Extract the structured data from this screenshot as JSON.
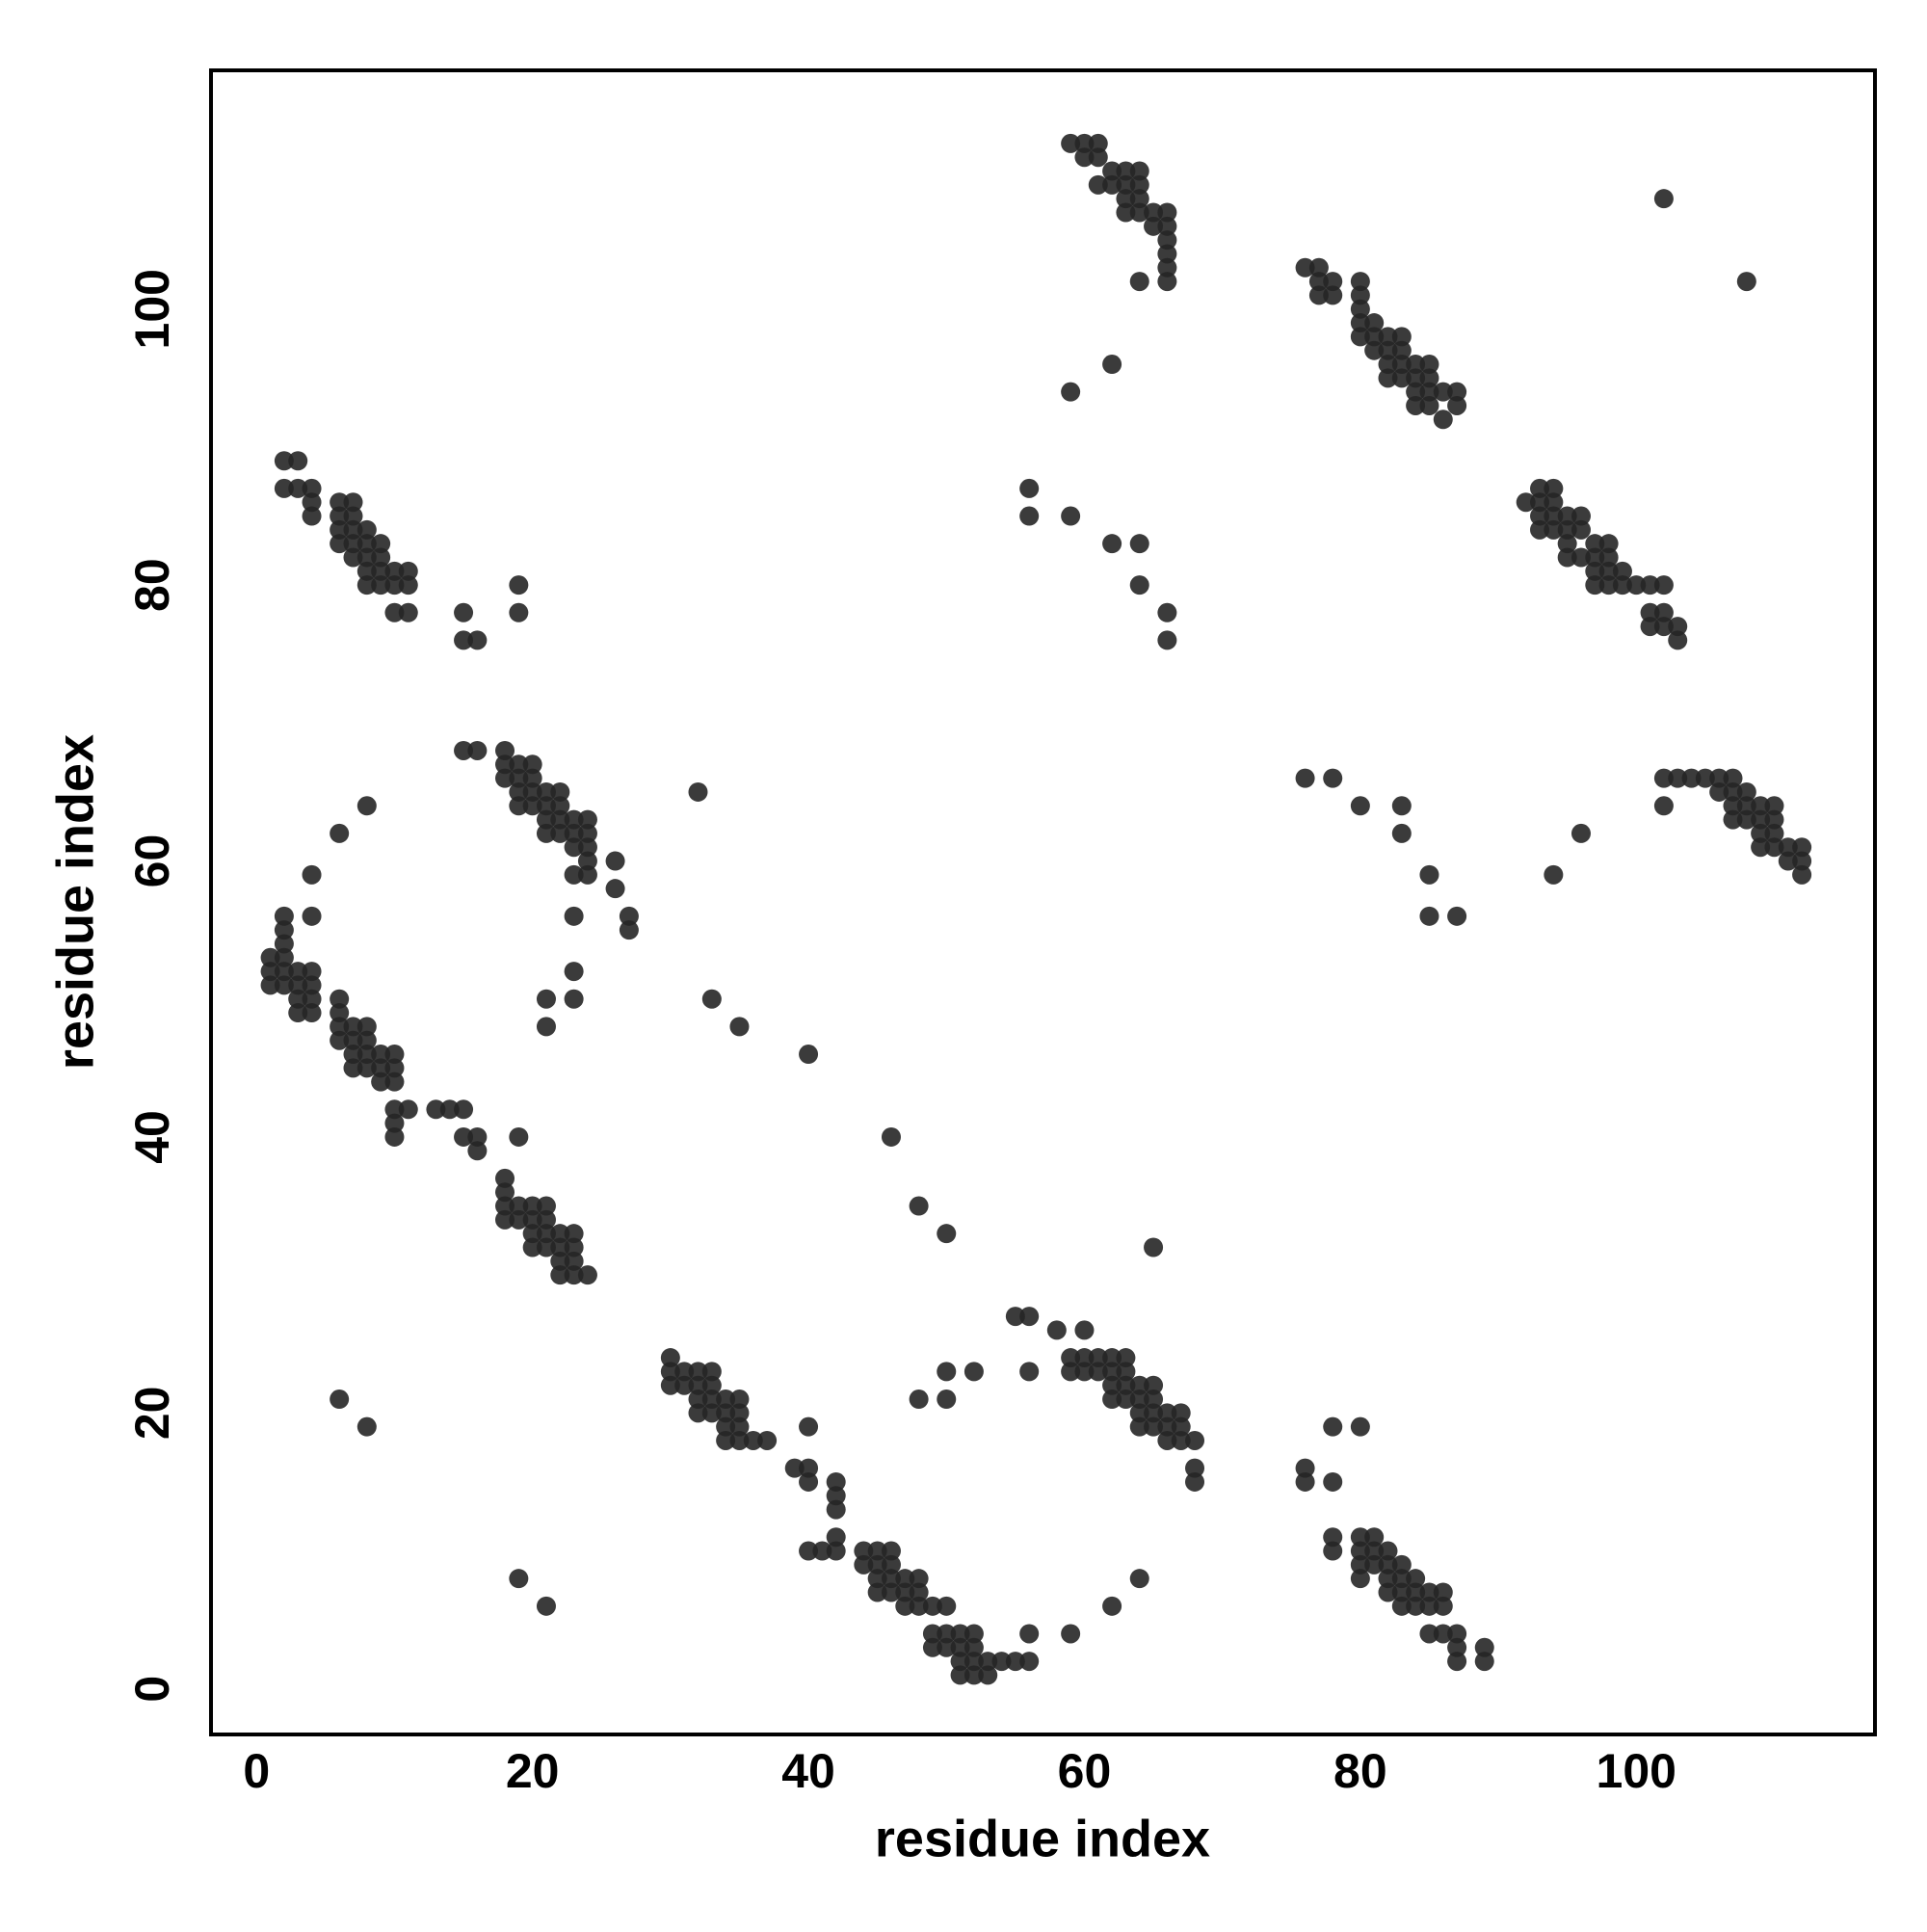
{
  "chart_data": {
    "type": "scatter",
    "xlabel": "residue index",
    "ylabel": "residue index",
    "xlim": [
      -3.3,
      117.3
    ],
    "ylim": [
      -3.3,
      117.3
    ],
    "xticks": [
      0,
      20,
      40,
      60,
      80,
      100
    ],
    "yticks": [
      0,
      20,
      40,
      60,
      80,
      100
    ],
    "grid": false,
    "color": "#262626",
    "x": [
      2,
      3,
      2,
      3,
      4,
      4,
      4,
      6,
      7,
      6,
      7,
      6,
      7,
      8,
      6,
      7,
      8,
      9,
      7,
      8,
      9,
      8,
      9,
      10,
      11,
      8,
      9,
      10,
      11,
      10,
      11,
      15,
      15,
      16,
      19,
      19,
      2,
      4,
      2,
      2,
      4,
      1,
      2,
      1,
      2,
      3,
      4,
      1,
      2,
      3,
      4,
      3,
      4,
      3,
      4,
      6,
      6,
      6,
      7,
      8,
      6,
      7,
      8,
      7,
      8,
      9,
      10,
      7,
      8,
      9,
      10,
      9,
      10,
      10,
      11,
      10,
      10,
      13,
      14,
      15,
      15,
      16,
      16,
      19,
      6,
      8,
      15,
      16,
      18,
      18,
      19,
      20,
      18,
      19,
      20,
      19,
      20,
      21,
      22,
      19,
      20,
      21,
      22,
      21,
      22,
      23,
      24,
      21,
      22,
      23,
      24,
      23,
      24,
      24,
      23,
      24,
      26,
      26,
      27,
      27,
      23,
      23,
      23,
      21,
      21,
      32,
      18,
      18,
      18,
      19,
      20,
      21,
      18,
      19,
      20,
      21,
      20,
      21,
      22,
      23,
      20,
      21,
      22,
      23,
      22,
      23,
      22,
      23,
      24,
      33,
      35,
      40,
      46,
      48,
      50,
      65,
      30,
      30,
      31,
      32,
      33,
      30,
      31,
      32,
      33,
      32,
      33,
      34,
      35,
      32,
      33,
      34,
      35,
      34,
      35,
      34,
      35,
      36,
      37,
      6,
      8,
      19,
      21,
      40,
      39,
      40,
      40,
      42,
      42,
      42,
      42,
      40,
      41,
      42,
      44,
      45,
      46,
      44,
      45,
      46,
      45,
      46,
      47,
      48,
      45,
      46,
      47,
      48,
      47,
      48,
      49,
      50,
      49,
      50,
      51,
      52,
      49,
      50,
      51,
      52,
      51,
      52,
      53,
      54,
      55,
      56,
      51,
      52,
      53,
      56,
      59,
      62,
      64,
      48,
      50,
      50,
      52,
      56,
      55,
      56,
      58,
      60,
      59,
      60,
      61,
      62,
      63,
      59,
      60,
      61,
      62,
      63,
      62,
      63,
      64,
      65,
      62,
      63,
      64,
      65,
      64,
      65,
      66,
      67,
      64,
      65,
      66,
      67,
      66,
      67,
      68,
      68,
      68,
      76,
      76,
      78,
      80,
      78,
      78,
      78,
      80,
      81,
      80,
      81,
      82,
      80,
      81,
      82,
      83,
      80,
      82,
      83,
      84,
      82,
      83,
      84,
      85,
      86,
      83,
      84,
      85,
      86,
      85,
      86,
      87,
      87,
      87,
      89,
      89,
      59,
      60,
      61,
      60,
      61,
      62,
      63,
      64,
      61,
      62,
      63,
      64,
      63,
      64,
      63,
      64,
      65,
      66,
      65,
      66,
      66,
      66,
      66,
      64,
      66,
      62,
      59,
      56,
      56,
      59,
      62,
      64,
      64,
      66,
      66,
      76,
      77,
      77,
      78,
      80,
      77,
      78,
      80,
      80,
      80,
      81,
      80,
      81,
      82,
      83,
      81,
      82,
      83,
      82,
      83,
      84,
      85,
      82,
      83,
      84,
      85,
      84,
      85,
      86,
      87,
      84,
      85,
      87,
      86,
      92,
      93,
      94,
      93,
      94,
      93,
      94,
      95,
      96,
      93,
      94,
      95,
      96,
      95,
      97,
      98,
      95,
      96,
      97,
      98,
      97,
      98,
      99,
      97,
      98,
      99,
      100,
      101,
      102,
      101,
      102,
      101,
      102,
      103,
      103,
      102,
      108,
      76,
      78,
      80,
      83,
      83,
      85,
      85,
      87,
      94,
      96,
      102,
      103,
      104,
      105,
      106,
      107,
      102,
      106,
      107,
      108,
      107,
      108,
      109,
      110,
      107,
      108,
      109,
      110,
      109,
      110,
      109,
      110,
      111,
      112,
      111,
      112,
      112
    ],
    "y": [
      89,
      89,
      87,
      87,
      87,
      86,
      85,
      86,
      86,
      85,
      85,
      84,
      84,
      84,
      83,
      83,
      83,
      83,
      82,
      82,
      82,
      81,
      81,
      81,
      81,
      80,
      80,
      80,
      80,
      78,
      78,
      78,
      76,
      76,
      80,
      78,
      56,
      56,
      55,
      54,
      59,
      53,
      53,
      52,
      52,
      52,
      52,
      51,
      51,
      51,
      51,
      50,
      50,
      49,
      49,
      50,
      49,
      48,
      48,
      48,
      47,
      47,
      47,
      46,
      46,
      46,
      46,
      45,
      45,
      45,
      45,
      44,
      44,
      42,
      42,
      41,
      40,
      42,
      42,
      42,
      40,
      40,
      39,
      40,
      62,
      64,
      68,
      68,
      68,
      67,
      67,
      67,
      66,
      66,
      66,
      65,
      65,
      65,
      65,
      64,
      64,
      64,
      64,
      63,
      63,
      63,
      63,
      62,
      62,
      62,
      62,
      61,
      61,
      60,
      59,
      59,
      60,
      58,
      56,
      55,
      56,
      52,
      50,
      50,
      48,
      65,
      37,
      36,
      35,
      35,
      35,
      35,
      34,
      34,
      34,
      34,
      33,
      33,
      33,
      33,
      32,
      32,
      32,
      32,
      31,
      31,
      30,
      30,
      30,
      50,
      48,
      46,
      40,
      35,
      33,
      32,
      24,
      23,
      23,
      23,
      23,
      22,
      22,
      22,
      22,
      21,
      21,
      21,
      21,
      20,
      20,
      20,
      20,
      19,
      19,
      18,
      18,
      18,
      18,
      21,
      19,
      8,
      6,
      19,
      16,
      16,
      15,
      15,
      14,
      13,
      11,
      10,
      10,
      10,
      10,
      10,
      10,
      9,
      9,
      9,
      8,
      8,
      8,
      8,
      7,
      7,
      7,
      7,
      6,
      6,
      6,
      6,
      4,
      4,
      4,
      4,
      3,
      3,
      3,
      3,
      2,
      2,
      2,
      2,
      2,
      2,
      1,
      1,
      1,
      4,
      4,
      6,
      8,
      21,
      21,
      23,
      23,
      23,
      27,
      27,
      26,
      26,
      24,
      24,
      24,
      24,
      24,
      23,
      23,
      23,
      23,
      23,
      22,
      22,
      22,
      22,
      21,
      21,
      21,
      21,
      20,
      20,
      20,
      20,
      19,
      19,
      19,
      19,
      18,
      18,
      18,
      16,
      15,
      16,
      15,
      19,
      19,
      15,
      11,
      10,
      11,
      11,
      10,
      10,
      10,
      9,
      9,
      9,
      9,
      8,
      8,
      8,
      8,
      7,
      7,
      7,
      7,
      7,
      6,
      6,
      6,
      6,
      4,
      4,
      4,
      3,
      2,
      3,
      2,
      112,
      112,
      112,
      111,
      111,
      110,
      110,
      110,
      109,
      109,
      109,
      109,
      108,
      108,
      107,
      107,
      107,
      107,
      106,
      106,
      105,
      104,
      103,
      102,
      102,
      96,
      94,
      87,
      85,
      85,
      83,
      83,
      80,
      78,
      76,
      103,
      103,
      102,
      102,
      102,
      101,
      101,
      101,
      100,
      99,
      99,
      98,
      98,
      98,
      98,
      97,
      97,
      97,
      96,
      96,
      96,
      96,
      95,
      95,
      95,
      95,
      94,
      94,
      94,
      94,
      93,
      93,
      93,
      92,
      86,
      87,
      87,
      86,
      86,
      85,
      85,
      85,
      85,
      84,
      84,
      84,
      84,
      83,
      83,
      83,
      82,
      82,
      82,
      82,
      81,
      81,
      81,
      80,
      80,
      80,
      80,
      80,
      80,
      78,
      78,
      77,
      77,
      77,
      76,
      108,
      102,
      66,
      66,
      64,
      64,
      62,
      59,
      56,
      56,
      59,
      62,
      66,
      66,
      66,
      66,
      66,
      66,
      64,
      65,
      65,
      65,
      64,
      64,
      64,
      64,
      63,
      63,
      63,
      63,
      62,
      62,
      61,
      61,
      61,
      61,
      60,
      60,
      59
    ]
  }
}
